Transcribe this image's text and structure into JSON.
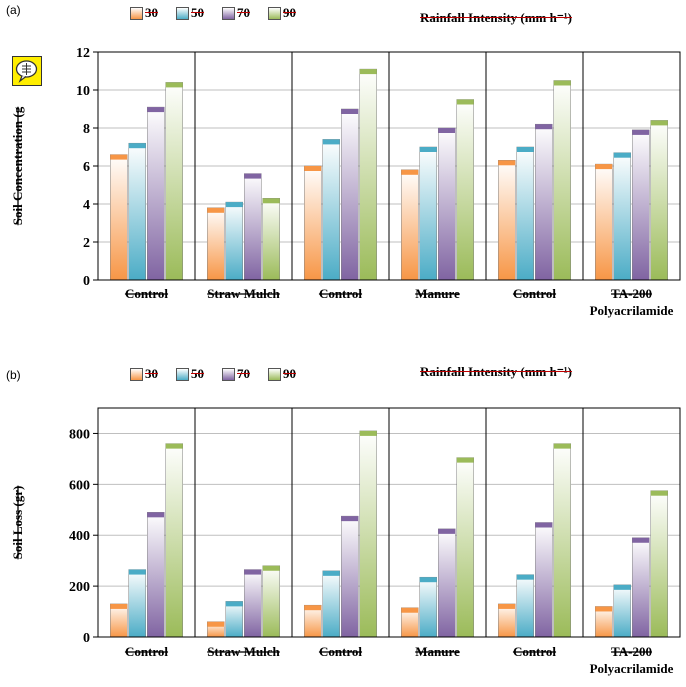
{
  "panels": [
    {
      "label": "(a)",
      "legend_title": "Rainfall Intensity (mm h⁻¹)"
    },
    {
      "label": "(b)",
      "legend_title": "Rainfall Intensity (mm h⁻¹)"
    }
  ],
  "legend": [
    {
      "label": "30",
      "color": "#f79646"
    },
    {
      "label": "50",
      "color": "#4bacc6"
    },
    {
      "label": "70",
      "color": "#8064a2"
    },
    {
      "label": "90",
      "color": "#9bbb59"
    }
  ],
  "icons": {
    "note": "speech-bubble-note-icon"
  },
  "chart_data": [
    {
      "type": "bar",
      "ylabel": "Soil Concentration (g",
      "ylim": [
        0,
        12
      ],
      "yticks": [
        0,
        2,
        4,
        6,
        8,
        10,
        12
      ],
      "categories": [
        "Control",
        "Straw Mulch",
        "Control",
        "Manure",
        "Control",
        "TA-200 Polyacrilamide"
      ],
      "category_lines": [
        [
          "Control"
        ],
        [
          "Straw Mulch"
        ],
        [
          "Control"
        ],
        [
          "Manure"
        ],
        [
          "Control"
        ],
        [
          "TA-200",
          "Polyacrilamide"
        ]
      ],
      "series": [
        {
          "name": "30",
          "values": [
            6.6,
            3.8,
            6.0,
            5.8,
            6.3,
            6.1
          ]
        },
        {
          "name": "50",
          "values": [
            7.2,
            4.1,
            7.4,
            7.0,
            7.0,
            6.7
          ]
        },
        {
          "name": "70",
          "values": [
            9.1,
            5.6,
            9.0,
            8.0,
            8.2,
            7.9
          ]
        },
        {
          "name": "90",
          "values": [
            10.4,
            4.3,
            11.1,
            9.5,
            10.5,
            8.4
          ]
        }
      ],
      "grid": true
    },
    {
      "type": "bar",
      "ylabel": "Soil Loss (gr)",
      "ylim": [
        0,
        900
      ],
      "yticks": [
        0,
        200,
        400,
        600,
        800
      ],
      "categories": [
        "Control",
        "Straw Mulch",
        "Control",
        "Manure",
        "Control",
        "TA-200 Polyacrilamide"
      ],
      "category_lines": [
        [
          "Control"
        ],
        [
          "Straw Mulch"
        ],
        [
          "Control"
        ],
        [
          "Manure"
        ],
        [
          "Control"
        ],
        [
          "TA-200",
          "Polyacrilamide"
        ]
      ],
      "series": [
        {
          "name": "30",
          "values": [
            130,
            60,
            125,
            115,
            130,
            120
          ]
        },
        {
          "name": "50",
          "values": [
            265,
            140,
            260,
            235,
            245,
            205
          ]
        },
        {
          "name": "70",
          "values": [
            490,
            265,
            475,
            425,
            450,
            390
          ]
        },
        {
          "name": "90",
          "values": [
            760,
            280,
            810,
            705,
            760,
            575
          ]
        }
      ],
      "grid": true
    }
  ]
}
